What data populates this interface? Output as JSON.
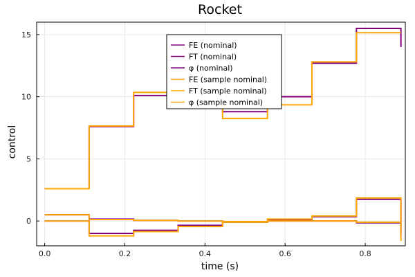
{
  "chart_data": {
    "type": "line",
    "step": true,
    "title": "Rocket",
    "xlabel": "time (s)",
    "ylabel": "control",
    "xlim": [
      -0.02,
      0.9
    ],
    "ylim": [
      -2.0,
      16.0
    ],
    "xticks": [
      0.0,
      0.2,
      0.4,
      0.6,
      0.8
    ],
    "xtick_labels": [
      "0.0",
      "0.2",
      "0.4",
      "0.6",
      "0.8"
    ],
    "yticks": [
      0,
      5,
      10,
      15
    ],
    "ytick_labels": [
      "0",
      "5",
      "10",
      "15"
    ],
    "grid": true,
    "legend_position": "top-center",
    "colors": {
      "nominal": "#800080",
      "sample_nominal": "#FFA500"
    },
    "x": [
      0.0,
      0.111,
      0.222,
      0.333,
      0.444,
      0.556,
      0.667,
      0.778,
      0.889
    ],
    "series": [
      {
        "name": "FE (nominal)",
        "group": "nominal",
        "values": [
          2.6,
          7.6,
          10.1,
          10.1,
          8.8,
          10.0,
          12.7,
          15.5,
          14.0
        ]
      },
      {
        "name": "FT (nominal)",
        "group": "nominal",
        "values": [
          0.0,
          -1.0,
          -0.75,
          -0.35,
          -0.05,
          0.1,
          0.35,
          1.75,
          -1.2
        ]
      },
      {
        "name": "φ (nominal)",
        "group": "nominal",
        "values": [
          0.5,
          0.15,
          0.05,
          0.0,
          -0.1,
          0.0,
          0.0,
          -0.15,
          -0.15
        ]
      },
      {
        "name": "FE (sample nominal)",
        "group": "sample_nominal",
        "values": [
          2.6,
          7.65,
          10.35,
          10.35,
          8.25,
          9.35,
          12.8,
          15.15,
          15.15
        ]
      },
      {
        "name": "FT (sample nominal)",
        "group": "sample_nominal",
        "values": [
          0.0,
          -1.2,
          -0.85,
          -0.45,
          -0.05,
          0.15,
          0.4,
          1.85,
          -1.6
        ]
      },
      {
        "name": "φ (sample nominal)",
        "group": "sample_nominal",
        "values": [
          0.5,
          0.12,
          0.05,
          0.0,
          -0.1,
          0.0,
          0.0,
          -0.1,
          -0.1
        ]
      }
    ]
  }
}
